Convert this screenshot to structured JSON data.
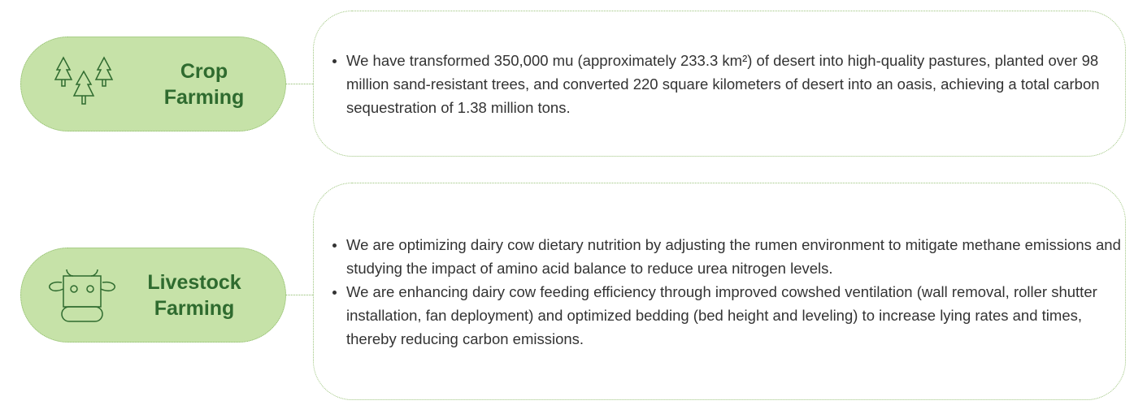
{
  "sections": [
    {
      "title_lines": [
        "Crop",
        "Farming"
      ],
      "bullets": [
        "We have transformed 350,000 mu (approximately 233.3 km²) of desert into high-quality pastures, planted over 98 million sand-resistant trees, and converted 220 square kilometers of desert into an oasis, achieving a total carbon sequestration of 1.38 million tons."
      ]
    },
    {
      "title_lines": [
        "Livestock",
        "Farming"
      ],
      "bullets": [
        "We are optimizing dairy cow dietary nutrition by adjusting the rumen environment to mitigate methane emissions and studying the impact of amino acid balance to reduce urea nitrogen levels.",
        "We are enhancing dairy cow feeding efficiency through improved cowshed ventilation (wall removal, roller shutter installation, fan deployment) and optimized bedding (bed height and leveling) to increase lying rates and times, thereby reducing carbon emissions."
      ]
    }
  ]
}
